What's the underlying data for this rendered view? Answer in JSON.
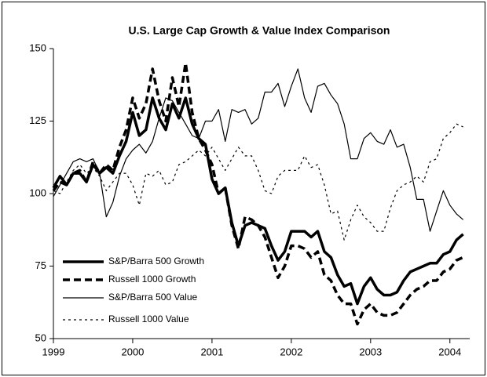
{
  "chart_data": {
    "type": "line",
    "title": "U.S. Large Cap Growth & Value Index Comparison",
    "x": [
      1999,
      1999.083,
      1999.167,
      1999.25,
      1999.333,
      1999.417,
      1999.5,
      1999.583,
      1999.667,
      1999.75,
      1999.833,
      1999.917,
      2000,
      2000.083,
      2000.167,
      2000.25,
      2000.333,
      2000.417,
      2000.5,
      2000.583,
      2000.667,
      2000.75,
      2000.833,
      2000.917,
      2001,
      2001.083,
      2001.167,
      2001.25,
      2001.333,
      2001.417,
      2001.5,
      2001.583,
      2001.667,
      2001.75,
      2001.833,
      2001.917,
      2002,
      2002.083,
      2002.167,
      2002.25,
      2002.333,
      2002.417,
      2002.5,
      2002.583,
      2002.667,
      2002.75,
      2002.833,
      2002.917,
      2003,
      2003.083,
      2003.167,
      2003.25,
      2003.333,
      2003.417,
      2003.5,
      2003.583,
      2003.667,
      2003.75,
      2003.833,
      2003.917,
      2004,
      2004.083,
      2004.167
    ],
    "series": [
      {
        "name": "S&P/Barra 500 Growth",
        "color": "#000000",
        "width": 3.5,
        "style": "solid",
        "values": [
          102,
          106,
          103,
          107,
          107,
          104,
          110,
          107,
          109,
          107,
          113,
          118,
          128,
          120,
          122,
          133,
          126,
          122,
          131,
          126,
          133,
          124,
          119,
          117,
          105,
          100,
          102,
          90,
          82,
          89,
          90,
          89,
          88,
          82,
          77,
          80,
          87,
          87,
          87,
          85,
          87,
          80,
          78,
          72,
          68,
          69,
          62,
          68,
          71,
          67,
          65,
          65,
          66,
          70,
          73,
          74,
          75,
          76,
          76,
          79,
          80,
          84,
          86
        ]
      },
      {
        "name": "Russell 1000 Growth",
        "color": "#000000",
        "width": 3.5,
        "style": "dashed",
        "values": [
          101,
          104,
          103,
          107,
          108,
          104,
          111,
          107,
          110,
          108,
          116,
          122,
          133,
          126,
          131,
          143,
          132,
          125,
          140,
          130,
          145,
          128,
          119,
          115,
          110,
          100,
          102,
          89,
          81,
          92,
          91,
          89,
          85,
          78,
          71,
          75,
          82,
          82,
          81,
          78,
          80,
          72,
          70,
          65,
          62,
          62,
          55,
          60,
          62,
          59,
          58,
          58,
          59,
          62,
          65,
          67,
          68,
          70,
          70,
          73,
          74,
          77,
          78
        ]
      },
      {
        "name": "S&P/Barra 500 Value",
        "color": "#000000",
        "width": 1.2,
        "style": "solid",
        "values": [
          99,
          103,
          107,
          111,
          112,
          111,
          112,
          107,
          92,
          97,
          106,
          112,
          115,
          117,
          114,
          118,
          126,
          133,
          132,
          128,
          124,
          120,
          119,
          125,
          125,
          129,
          118,
          129,
          128,
          129,
          124,
          126,
          135,
          135,
          138,
          130,
          137,
          143,
          133,
          128,
          137,
          138,
          134,
          131,
          124,
          112,
          112,
          119,
          121,
          118,
          117,
          122,
          116,
          117,
          109,
          98,
          98,
          87,
          94,
          101,
          96,
          93,
          91
        ]
      },
      {
        "name": "Russell 1000 Value",
        "color": "#000000",
        "width": 1.2,
        "style": "dotted",
        "values": [
          101,
          100,
          104,
          108,
          110,
          107,
          109,
          106,
          101,
          104,
          107,
          107,
          103,
          96,
          107,
          106,
          108,
          103,
          104,
          110,
          111,
          113,
          115,
          113,
          116,
          112,
          108,
          112,
          116,
          113,
          113,
          108,
          101,
          100,
          106,
          108,
          108,
          108,
          113,
          109,
          110,
          103,
          93,
          94,
          84,
          91,
          96,
          92,
          90,
          87,
          87,
          95,
          101,
          103,
          104,
          106,
          104,
          111,
          112,
          119,
          121,
          124,
          123
        ]
      }
    ],
    "xlim": [
      1999,
      2004.25
    ],
    "xticks": [
      1999,
      2000,
      2001,
      2002,
      2003,
      2004
    ],
    "ylim": [
      50,
      150
    ],
    "yticks": [
      50,
      75,
      100,
      125,
      150
    ],
    "grid": false,
    "legend": "lower left"
  }
}
